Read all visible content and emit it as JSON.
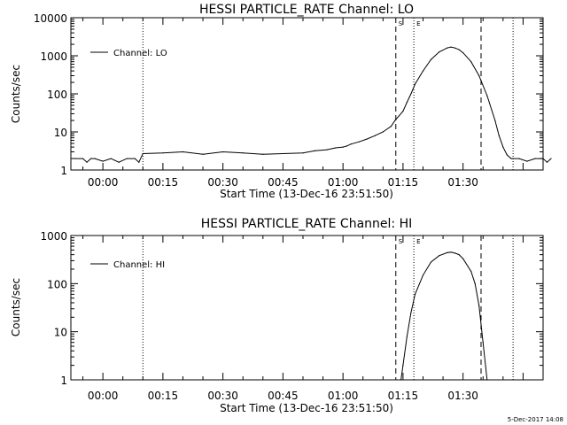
{
  "footer_timestamp": "5-Dec-2017 14:08",
  "x_tick_labels": [
    "00:00",
    "00:15",
    "00:30",
    "00:45",
    "01:00",
    "01:15",
    "01:30"
  ],
  "chart_data": [
    {
      "type": "line",
      "title": "HESSI PARTICLE_RATE Channel: LO",
      "xlabel": "Start Time (13-Dec-16 23:51:50)",
      "ylabel": "Counts/sec",
      "y_scale": "log",
      "ylim": [
        1,
        10000
      ],
      "y_tick_labels": [
        "1",
        "10",
        "100",
        "1000",
        "10000"
      ],
      "legend": {
        "label": "Channel: LO",
        "placement": "top-left"
      },
      "markers": [
        {
          "label": "S",
          "x_min": 73.2,
          "style": "dashed"
        },
        {
          "label": "E",
          "x_min": 77.7,
          "style": "dotted"
        }
      ],
      "series": [
        {
          "name": "Channel: LO",
          "x_min": [
            -7,
            -5,
            -4,
            -3,
            -2,
            0,
            2,
            4,
            6,
            8,
            9,
            10,
            15,
            20,
            25,
            30,
            35,
            40,
            45,
            50,
            53,
            56,
            58,
            60,
            61,
            62,
            64,
            66,
            68,
            70,
            72,
            73,
            75,
            76,
            77,
            78,
            80,
            82,
            84,
            86,
            87,
            88,
            89,
            90,
            92,
            94,
            96,
            98,
            99,
            100,
            101,
            102,
            104,
            106,
            108,
            110,
            111,
            112
          ],
          "y": [
            2,
            2,
            1.6,
            2,
            2,
            1.7,
            2,
            1.6,
            2,
            2,
            1.6,
            2.7,
            2.8,
            3,
            2.6,
            3,
            2.8,
            2.6,
            2.7,
            2.8,
            3.2,
            3.4,
            3.8,
            4,
            4.3,
            4.8,
            5.5,
            6.5,
            8,
            10,
            14,
            20,
            35,
            60,
            100,
            180,
            400,
            800,
            1250,
            1600,
            1700,
            1600,
            1450,
            1200,
            700,
            300,
            90,
            20,
            8,
            4,
            2.5,
            2,
            2,
            1.7,
            2,
            2,
            1.6,
            2
          ]
        }
      ]
    },
    {
      "type": "line",
      "title": "HESSI PARTICLE_RATE Channel: HI",
      "xlabel": "Start Time (13-Dec-16 23:51:50)",
      "ylabel": "Counts/sec",
      "y_scale": "log",
      "ylim": [
        1,
        1000
      ],
      "y_tick_labels": [
        "1",
        "10",
        "100",
        "1000"
      ],
      "legend": {
        "label": "Channel: HI",
        "placement": "top-left"
      },
      "markers": [
        {
          "label": "S",
          "x_min": 73.2,
          "style": "dashed"
        },
        {
          "label": "E",
          "x_min": 77.7,
          "style": "dotted"
        }
      ],
      "series": [
        {
          "name": "Channel: HI",
          "x_min": [
            74.5,
            75,
            76,
            77,
            78,
            80,
            82,
            84,
            86,
            87,
            88,
            89,
            90,
            92,
            93,
            94,
            95,
            96
          ],
          "y": [
            1,
            2,
            8,
            25,
            60,
            150,
            280,
            380,
            440,
            450,
            430,
            400,
            330,
            180,
            100,
            35,
            6,
            1
          ]
        }
      ]
    }
  ]
}
